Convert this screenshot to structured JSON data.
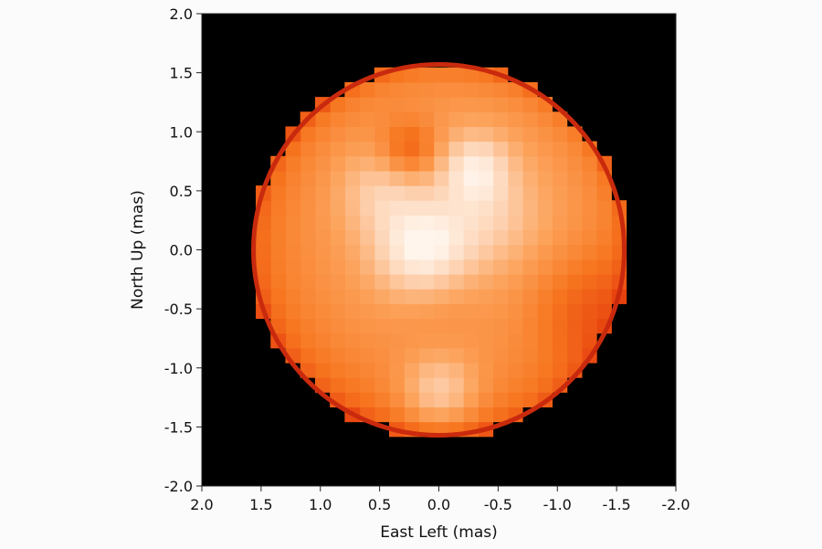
{
  "chart_data": {
    "type": "heatmap",
    "title": "",
    "xlabel": "East Left (mas)",
    "ylabel": "North Up (mas)",
    "xlim": [
      2.0,
      -2.0
    ],
    "ylim": [
      -2.0,
      2.0
    ],
    "x_ticks": [
      "2.0",
      "1.5",
      "1.0",
      "0.5",
      "0.0",
      "-0.5",
      "-1.0",
      "-1.5",
      "-2.0"
    ],
    "y_ticks": [
      "2.0",
      "1.5",
      "1.0",
      "0.5",
      "0.0",
      "-0.5",
      "-1.0",
      "-1.5",
      "-2.0"
    ],
    "grid": false,
    "background_color": "#000000",
    "colormap": [
      "#b41a0c",
      "#e8420f",
      "#f7761f",
      "#fca25a",
      "#fdd0ae",
      "#fff5ec"
    ],
    "disk": {
      "center": [
        0.0,
        0.0
      ],
      "radius_mas": 1.58
    },
    "features": [
      {
        "x": 0.15,
        "y": 0.0,
        "sigma": 0.28,
        "intensity": 0.4
      },
      {
        "x": -0.3,
        "y": 0.7,
        "sigma": 0.2,
        "intensity": 0.3
      },
      {
        "x": 0.5,
        "y": 0.5,
        "sigma": 0.25,
        "intensity": 0.2
      },
      {
        "x": 0.0,
        "y": -1.2,
        "sigma": 0.22,
        "intensity": 0.3
      },
      {
        "x": -0.4,
        "y": 0.3,
        "sigma": 0.3,
        "intensity": 0.18
      },
      {
        "x": 0.25,
        "y": 0.85,
        "sigma": 0.18,
        "intensity": -0.28
      },
      {
        "x": -1.2,
        "y": -0.5,
        "sigma": 0.35,
        "intensity": -0.18
      },
      {
        "x": 0.0,
        "y": -0.45,
        "sigma": 0.3,
        "intensity": -0.08
      }
    ]
  }
}
